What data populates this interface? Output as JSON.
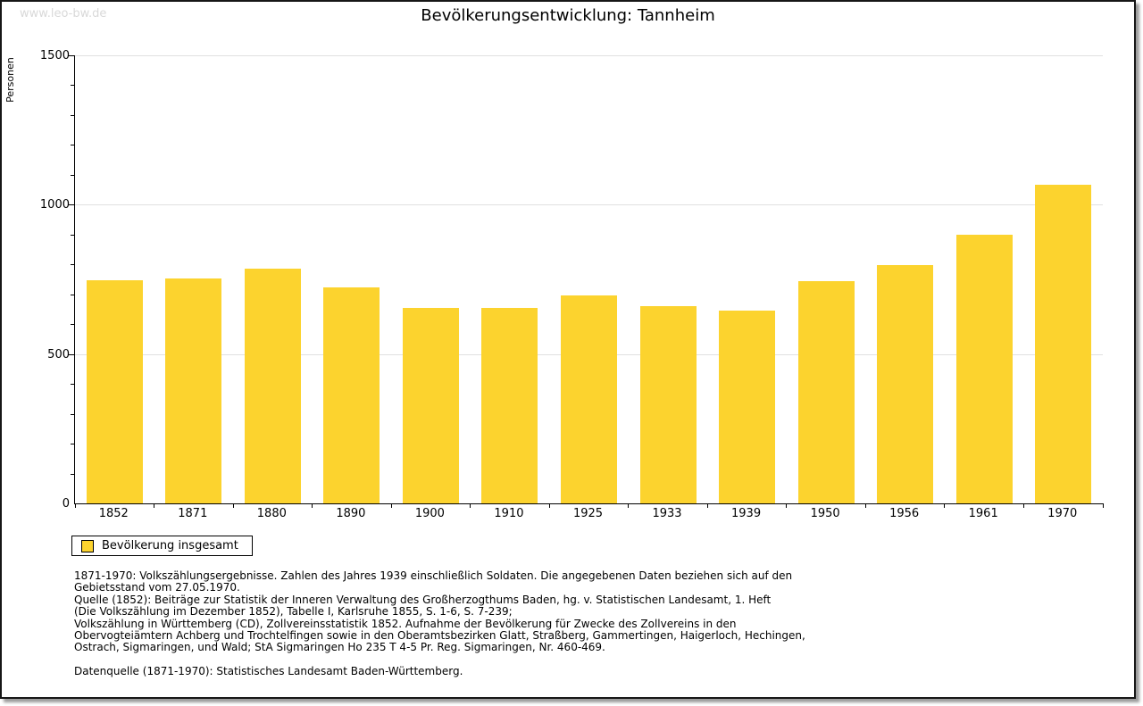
{
  "page": {
    "watermark": "www.leo-bw.de",
    "title": "Bevölkerungsentwicklung: Tannheim"
  },
  "chart_data": {
    "type": "bar",
    "title": "Bevölkerungsentwicklung: Tannheim",
    "xlabel": "",
    "ylabel": "Personen",
    "categories": [
      "1852",
      "1871",
      "1880",
      "1890",
      "1900",
      "1910",
      "1925",
      "1933",
      "1939",
      "1950",
      "1956",
      "1961",
      "1970"
    ],
    "series": [
      {
        "name": "Bevölkerung insgesamt",
        "values": [
          748,
          752,
          785,
          722,
          655,
          653,
          697,
          661,
          645,
          743,
          798,
          900,
          1066
        ]
      }
    ],
    "ylim": [
      0,
      1500
    ],
    "yticks_major": [
      0,
      500,
      1000,
      1500
    ],
    "ytick_minor_step": 100,
    "grid": "horizontal-at-major-ticks",
    "legend_position": "bottom-left",
    "legend_entries": [
      "Bevölkerung insgesamt"
    ]
  },
  "colors": {
    "bar": "#FCD32E",
    "grid": "#E0E0E0",
    "axis": "#000000",
    "watermark": "#D9D9D9"
  },
  "footnotes": {
    "lines": [
      "1871-1970: Volkszählungsergebnisse. Zahlen des Jahres 1939 einschließlich Soldaten. Die angegebenen Daten beziehen sich auf den",
      "Gebietsstand vom 27.05.1970.",
      "Quelle (1852): Beiträge zur Statistik der Inneren Verwaltung des Großherzogthums Baden, hg. v. Statistischen Landesamt, 1. Heft",
      "(Die Volkszählung im Dezember 1852), Tabelle I, Karlsruhe 1855, S. 1-6, S. 7-239;",
      "Volkszählung in Württemberg (CD), Zollvereinsstatistik 1852. Aufnahme der Bevölkerung für Zwecke des Zollvereins in den",
      "Obervogteiämtern Achberg und Trochtelfingen sowie in den Oberamtsbezirken Glatt, Straßberg, Gammertingen, Haigerloch, Hechingen,",
      "Ostrach, Sigmaringen, und Wald; StA Sigmaringen Ho 235 T 4-5 Pr. Reg. Sigmaringen, Nr. 460-469."
    ],
    "datasource": "Datenquelle (1871-1970): Statistisches Landesamt Baden-Württemberg."
  }
}
